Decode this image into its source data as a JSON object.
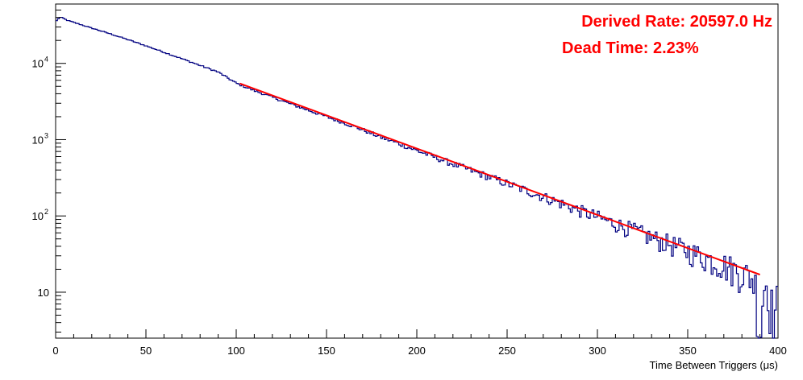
{
  "chart_data": {
    "type": "line",
    "title": "",
    "xlabel": "Time Between Triggers (μs)",
    "ylabel": "",
    "xlim": [
      0,
      400
    ],
    "ylim": [
      2.5,
      60000
    ],
    "y_scale": "log",
    "x_ticks": [
      "0",
      "50",
      "100",
      "150",
      "200",
      "250",
      "300",
      "350",
      "400"
    ],
    "y_ticks": [
      {
        "value": 10,
        "label": "10"
      },
      {
        "value": 100,
        "label": "10",
        "exp": "2"
      },
      {
        "value": 1000,
        "label": "10",
        "exp": "3"
      },
      {
        "value": 10000,
        "label": "10",
        "exp": "4"
      }
    ],
    "grid": false,
    "annotations": [
      {
        "text": "Derived Rate: 20597.0 Hz",
        "color": "#ff0000"
      },
      {
        "text": "Dead Time: 2.23%",
        "color": "#ff0000"
      }
    ],
    "series": [
      {
        "kind": "histogram",
        "color": "#000080",
        "bin_width": 1,
        "x": [
          0,
          2,
          4,
          6,
          10,
          20,
          30,
          40,
          50,
          60,
          70,
          80,
          90,
          100,
          110,
          120,
          130,
          140,
          150,
          160,
          170,
          180,
          190,
          200,
          210,
          220,
          230,
          240,
          250,
          260,
          270,
          280,
          290,
          300,
          310,
          320,
          330,
          340,
          350,
          360,
          370,
          380,
          385,
          388,
          390,
          392,
          394,
          396,
          398,
          400
        ],
        "values": [
          35000,
          40000,
          39500,
          37000,
          34500,
          29000,
          24500,
          20500,
          17000,
          14000,
          11500,
          9400,
          7700,
          5500,
          4400,
          3600,
          2950,
          2430,
          2000,
          1650,
          1350,
          1080,
          890,
          720,
          590,
          480,
          395,
          325,
          265,
          218,
          178,
          146,
          118,
          97,
          79,
          65,
          52,
          43,
          35,
          28,
          23,
          18,
          16,
          12,
          3,
          11,
          14,
          7,
          5,
          8
        ]
      },
      {
        "kind": "fit",
        "color": "#ff0000",
        "x_range": [
          102,
          390
        ],
        "y_start": 5450,
        "y_end": 17
      }
    ]
  }
}
